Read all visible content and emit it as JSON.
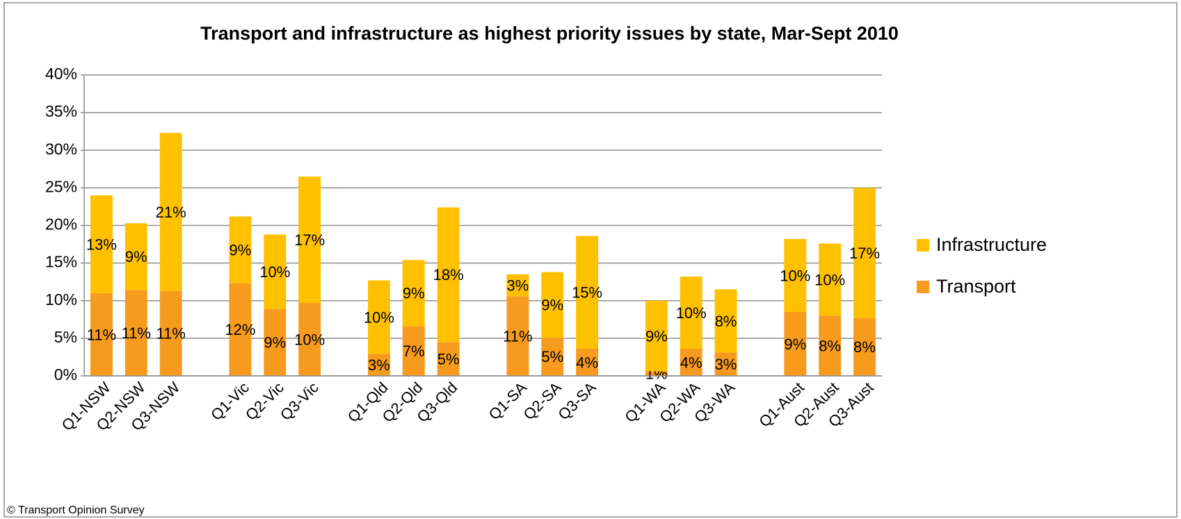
{
  "chart_data": {
    "type": "stacked_bar",
    "title": "Transport and infrastructure as highest priority issues by state, Mar-Sept 2010",
    "footnote": "© Transport Opinion Survey",
    "categories": [
      "Q1-NSW",
      "Q2-NSW",
      "Q3-NSW",
      null,
      "Q1-Vic",
      "Q2-Vic",
      "Q3-Vic",
      null,
      "Q1-Qld",
      "Q2-Qld",
      "Q3-Qld",
      null,
      "Q1-SA",
      "Q2-SA",
      "Q3-SA",
      null,
      "Q1-WA",
      "Q2-WA",
      "Q3-WA",
      null,
      "Q1-Aust",
      "Q2-Aust",
      "Q3-Aust"
    ],
    "series": [
      {
        "name": "Transport",
        "color": "#f79b1e",
        "values": [
          11.0,
          11.4,
          11.3,
          null,
          12.3,
          8.9,
          9.7,
          null,
          2.9,
          6.6,
          4.5,
          null,
          10.6,
          5.1,
          3.6,
          null,
          0.6,
          3.6,
          3.1,
          null,
          8.5,
          8.0,
          7.7
        ],
        "value_labels": [
          "11%",
          "11%",
          "11%",
          null,
          "12%",
          "9%",
          "10%",
          null,
          "3%",
          "7%",
          "5%",
          null,
          "11%",
          "5%",
          "4%",
          null,
          "1%",
          "4%",
          "3%",
          null,
          "9%",
          "8%",
          "8%"
        ]
      },
      {
        "name": "Infrastructure",
        "color": "#ffc000",
        "values": [
          13.0,
          8.9,
          21.0,
          null,
          8.9,
          9.9,
          16.8,
          null,
          9.8,
          8.8,
          17.9,
          null,
          2.9,
          8.7,
          15.0,
          null,
          9.4,
          9.6,
          8.4,
          null,
          9.7,
          9.6,
          17.3
        ],
        "value_labels": [
          "13%",
          "9%",
          "21%",
          null,
          "9%",
          "10%",
          "17%",
          null,
          "10%",
          "9%",
          "18%",
          null,
          "3%",
          "9%",
          "15%",
          null,
          "9%",
          "10%",
          "8%",
          null,
          "10%",
          "10%",
          "17%"
        ]
      }
    ],
    "ylim": [
      0,
      40
    ],
    "yticks": [
      {
        "value": 0,
        "label": "0%"
      },
      {
        "value": 5,
        "label": "5%"
      },
      {
        "value": 10,
        "label": "10%"
      },
      {
        "value": 15,
        "label": "15%"
      },
      {
        "value": 20,
        "label": "20%"
      },
      {
        "value": 25,
        "label": "25%"
      },
      {
        "value": 30,
        "label": "30%"
      },
      {
        "value": 35,
        "label": "35%"
      },
      {
        "value": 40,
        "label": "40%"
      }
    ],
    "grid": true,
    "legend": "right"
  }
}
